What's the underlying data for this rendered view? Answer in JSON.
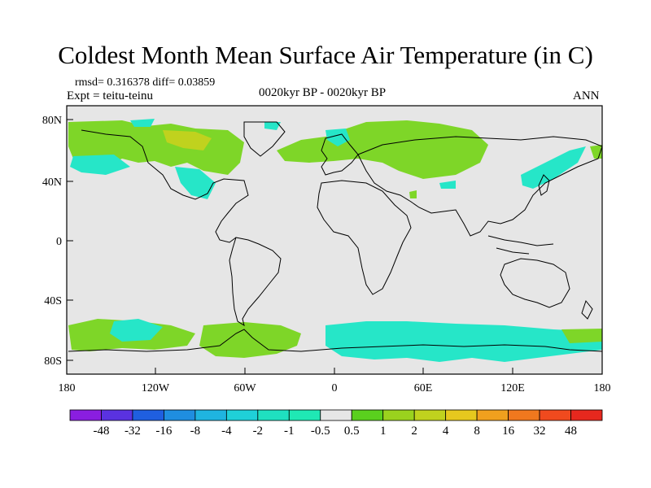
{
  "title": "Coldest Month Mean Surface Air Temperature (in C)",
  "stats": "rmsd= 0.316378  diff= 0.03859",
  "experiment": "Expt = teitu-teinu",
  "period": "0020kyr BP - 0020kyr BP",
  "season": "ANN",
  "axes": {
    "y_ticks": [
      "80N",
      "40N",
      "0",
      "40S",
      "80S"
    ],
    "x_ticks": [
      "180",
      "120W",
      "60W",
      "0",
      "60E",
      "120E",
      "180"
    ]
  },
  "colorbar": {
    "labels": [
      "-48",
      "-32",
      "-16",
      "-8",
      "-4",
      "-2",
      "-1",
      "-0.5",
      "0.5",
      "1",
      "2",
      "4",
      "8",
      "16",
      "32",
      "48"
    ],
    "colors": [
      "#8a1ee0",
      "#5a32e0",
      "#1f5fe0",
      "#1f8ee0",
      "#1fb4e0",
      "#1fd0d8",
      "#1fe0c0",
      "#1fe8b4",
      "#e6e6e6",
      "#5ad01e",
      "#9ad21e",
      "#c0d21e",
      "#e6c81e",
      "#f0a01e",
      "#f0781e",
      "#f04a1e",
      "#e6281e"
    ]
  },
  "colors": {
    "background_field": "#e6e6e6",
    "coast": "#000000",
    "warm_small": "#7ed628",
    "cool_small": "#26e6c8"
  }
}
